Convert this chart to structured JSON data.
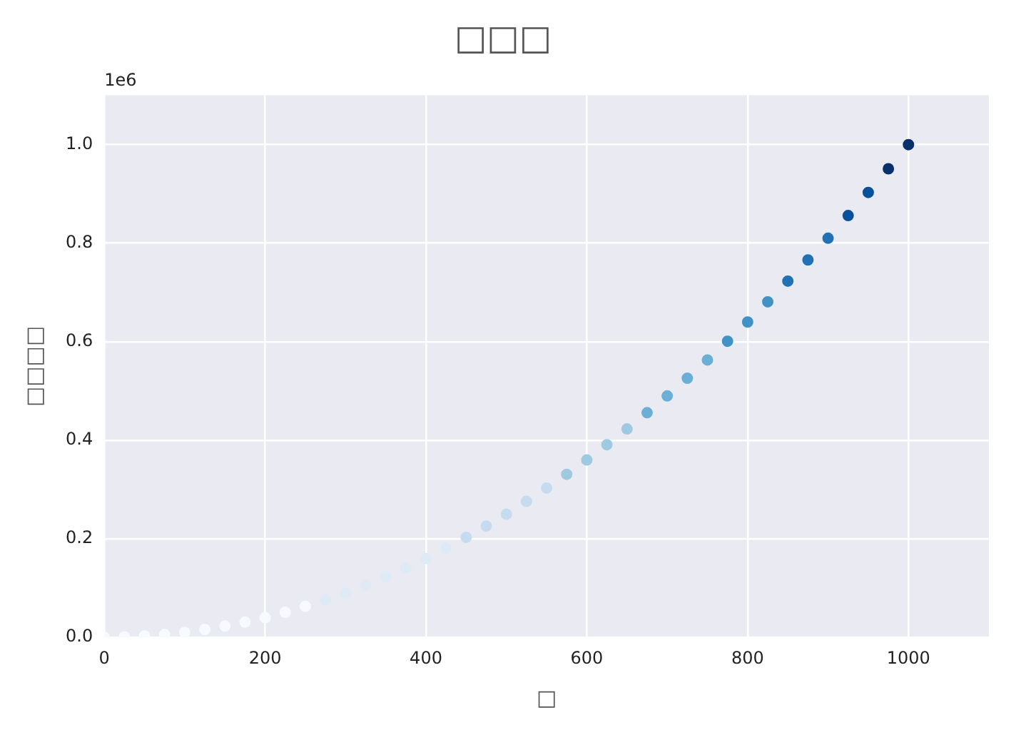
{
  "chart_data": {
    "type": "scatter",
    "title": "□□□",
    "xlabel": "□",
    "ylabel": "□□□□",
    "annotations": [
      "1e6"
    ],
    "x": [
      0,
      25,
      50,
      75,
      100,
      125,
      150,
      175,
      200,
      225,
      250,
      275,
      300,
      325,
      350,
      375,
      400,
      425,
      450,
      475,
      500,
      525,
      550,
      575,
      600,
      625,
      650,
      675,
      700,
      725,
      750,
      775,
      800,
      825,
      850,
      875,
      900,
      925,
      950,
      975,
      1000
    ],
    "values": [
      0,
      0.001,
      0.003,
      0.006,
      0.01,
      0.016,
      0.023,
      0.031,
      0.04,
      0.051,
      0.063,
      0.076,
      0.09,
      0.106,
      0.123,
      0.141,
      0.16,
      0.181,
      0.203,
      0.226,
      0.25,
      0.276,
      0.303,
      0.331,
      0.36,
      0.391,
      0.423,
      0.456,
      0.49,
      0.526,
      0.563,
      0.601,
      0.64,
      0.681,
      0.723,
      0.766,
      0.81,
      0.856,
      0.903,
      0.951,
      1
    ],
    "colors": [
      "#f7fbff",
      "#f7fbff",
      "#f7fbff",
      "#f7fbff",
      "#f7fbff",
      "#f7fbff",
      "#f7fbff",
      "#f7fbff",
      "#f7fbff",
      "#f7fbff",
      "#f7fbff",
      "#deebf7",
      "#deebf7",
      "#deebf7",
      "#deebf7",
      "#deebf7",
      "#deebf7",
      "#deebf7",
      "#c6dbef",
      "#c6dbef",
      "#c6dbef",
      "#c6dbef",
      "#c6dbef",
      "#9ecae1",
      "#9ecae1",
      "#9ecae1",
      "#9ecae1",
      "#6baed6",
      "#6baed6",
      "#6baed6",
      "#6baed6",
      "#4292c6",
      "#4292c6",
      "#4292c6",
      "#2171b5",
      "#2171b5",
      "#2171b5",
      "#08519c",
      "#08519c",
      "#08306b",
      "#08306b"
    ],
    "xlim": [
      0,
      1100
    ],
    "xticks": [
      0,
      200,
      400,
      600,
      800,
      1000
    ],
    "ylim": [
      0,
      1.1
    ],
    "yticks": [
      {
        "value": 0,
        "label": "0.0"
      },
      {
        "value": 0.2,
        "label": "0.2"
      },
      {
        "value": 0.4,
        "label": "0.4"
      },
      {
        "value": 0.6,
        "label": "0.6"
      },
      {
        "value": 0.8,
        "label": "0.8"
      },
      {
        "value": 1,
        "label": "1.0"
      }
    ],
    "grid": true,
    "marker": "circle",
    "legend": false
  }
}
